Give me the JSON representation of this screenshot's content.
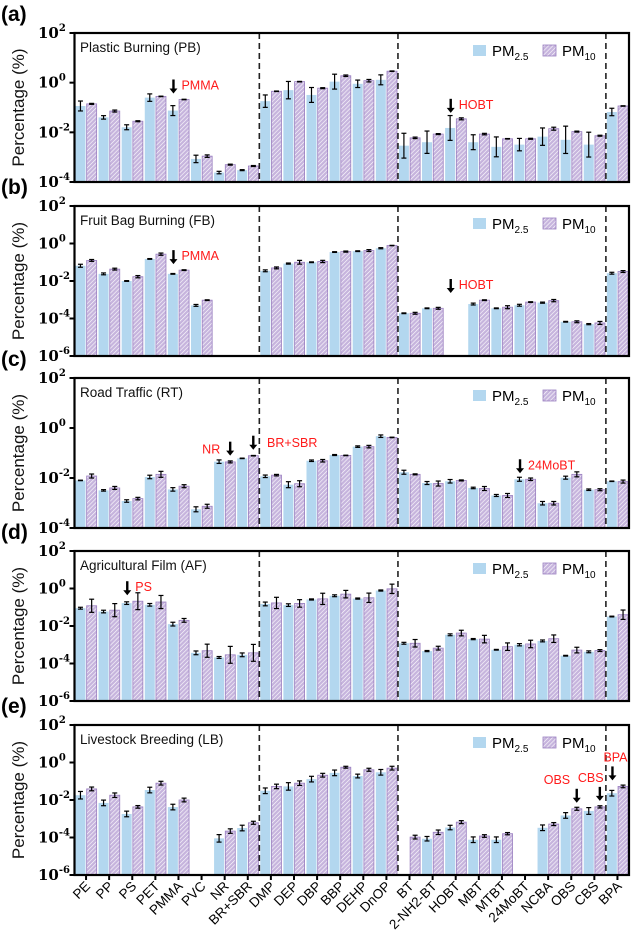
{
  "chart_data": {
    "type": "bar",
    "y_scale": "log",
    "ylabel": "Percentage (%)",
    "ytick_base": "10",
    "legend": [
      {
        "base": "PM",
        "sub": "2.5",
        "color": "#b3d7ef",
        "pattern": "solid"
      },
      {
        "base": "PM",
        "sub": "10",
        "color": "#c6b4dd",
        "pattern": "hatched"
      }
    ],
    "legend_position": "top-right",
    "categories": [
      "PE",
      "PP",
      "PS",
      "PET",
      "PMMA",
      "PVC",
      "NR",
      "BR+SBR",
      "DMP",
      "DEP",
      "DBP",
      "BBP",
      "DEHP",
      "DnOP",
      "BT",
      "2-NH2-BT",
      "HOBT",
      "MBT",
      "MTBT",
      "24MoBT",
      "NCBA",
      "OBS",
      "CBS",
      "BPA"
    ],
    "group_separators_after": [
      "BR+SBR",
      "DnOP",
      "CBS"
    ],
    "panels": [
      {
        "letter": "(a)",
        "title": "Plastic Burning (PB)",
        "ylim_exp": [
          -4,
          2
        ],
        "yticks_exp": [
          2,
          0,
          -2,
          -4
        ],
        "annotations": [
          {
            "text": "PMMA",
            "target": "PMMA"
          },
          {
            "text": "HOBT",
            "target": "HOBT"
          }
        ],
        "series": [
          {
            "name": "PM2.5",
            "values": [
              0.115,
              0.04,
              0.016,
              0.25,
              0.075,
              0.00085,
              0.00024,
              0.0003,
              0.18,
              0.5,
              0.32,
              1.1,
              0.9,
              1.3,
              0.0029,
              0.004,
              0.015,
              0.004,
              0.0026,
              0.0032,
              0.0067,
              0.005,
              0.0032,
              0.066
            ],
            "err_log10": [
              0.2,
              0.07,
              0.1,
              0.15,
              0.2,
              0.15,
              0.05,
              0.02,
              0.25,
              0.35,
              0.3,
              0.3,
              0.15,
              0.2,
              0.5,
              0.45,
              0.5,
              0.3,
              0.4,
              0.25,
              0.35,
              0.55,
              0.5,
              0.15
            ]
          },
          {
            "name": "PM10",
            "values": [
              0.14,
              0.072,
              0.028,
              0.28,
              0.21,
              0.0011,
              0.0005,
              0.00044,
              0.45,
              1.1,
              0.6,
              1.9,
              1.2,
              2.9,
              0.006,
              0.0085,
              0.035,
              0.0085,
              0.0055,
              0.0055,
              0.014,
              0.0107,
              0.0073,
              0.115
            ],
            "err_log10": [
              0.02,
              0.04,
              0.02,
              0.01,
              0.01,
              0.05,
              0.02,
              0.02,
              0.01,
              0.01,
              0.02,
              0.03,
              0.05,
              0.01,
              0.03,
              0.02,
              0.04,
              0.03,
              0.01,
              0.02,
              0.06,
              0.02,
              0.02,
              0.01
            ]
          }
        ]
      },
      {
        "letter": "(b)",
        "title": "Fruit Bag Burning (FB)",
        "ylim_exp": [
          -6,
          2
        ],
        "yticks_exp": [
          2,
          0,
          -2,
          -4,
          -6
        ],
        "annotations": [
          {
            "text": "PMMA",
            "target": "PMMA"
          },
          {
            "text": "HOBT",
            "target": "HOBT"
          }
        ],
        "series": [
          {
            "name": "PM2.5",
            "values": [
              0.065,
              0.024,
              0.01,
              0.15,
              0.024,
              0.0005,
              null,
              null,
              0.035,
              0.085,
              0.1,
              0.35,
              0.39,
              0.56,
              0.00019,
              0.00035,
              null,
              0.00059,
              0.00035,
              0.00051,
              0.0007,
              6.7e-05,
              5e-05,
              0.026
            ],
            "err_log10": [
              0.08,
              0.05,
              0.02,
              0.02,
              0.02,
              0.05,
              0,
              0,
              0.05,
              0.03,
              0.02,
              0.02,
              0.02,
              0.03,
              0.02,
              0.02,
              0,
              0.05,
              0.02,
              0.05,
              0.03,
              0.02,
              0.03,
              0.05
            ]
          },
          {
            "name": "PM10",
            "values": [
              0.125,
              0.043,
              0.017,
              0.27,
              0.038,
              0.00095,
              null,
              null,
              0.05,
              0.1,
              0.11,
              0.37,
              0.42,
              0.78,
              0.00019,
              0.00035,
              null,
              0.00095,
              0.0004,
              0.00075,
              0.0009,
              6.7e-05,
              5.8e-05,
              0.032
            ],
            "err_log10": [
              0.05,
              0.05,
              0.06,
              0.06,
              0.02,
              0.02,
              0,
              0,
              0.05,
              0.1,
              0.06,
              0.03,
              0.05,
              0.01,
              0.05,
              0.05,
              0,
              0.02,
              0.08,
              0.02,
              0.06,
              0.05,
              0.08,
              0.05
            ]
          }
        ]
      },
      {
        "letter": "(c)",
        "title": "Road Traffic (RT)",
        "ylim_exp": [
          -4,
          2
        ],
        "yticks_exp": [
          2,
          0,
          -2,
          -4
        ],
        "annotations": [
          {
            "text": "NR",
            "target": "NR"
          },
          {
            "text": "",
            "target": "BR+SBR"
          },
          {
            "text": "BR+SBR",
            "target": "DMP"
          },
          {
            "text": "24MoBT",
            "target": "24MoBT"
          }
        ],
        "series": [
          {
            "name": "PM2.5",
            "values": [
              0.008,
              0.0032,
              0.0012,
              0.011,
              0.0035,
              0.00056,
              0.045,
              0.061,
              0.0117,
              0.0054,
              0.049,
              0.083,
              0.18,
              0.47,
              0.017,
              0.0063,
              0.0074,
              0.004,
              0.002,
              0.0089,
              0.00098,
              0.0103,
              0.0034,
              0.0074
            ],
            "err_log10": [
              0.01,
              0.03,
              0.05,
              0.07,
              0.07,
              0.1,
              0.07,
              0.01,
              0.05,
              0.12,
              0.03,
              0.02,
              0.03,
              0.05,
              0.08,
              0.06,
              0.07,
              0.03,
              0.04,
              0.08,
              0.07,
              0.06,
              0.03,
              0.01
            ]
          },
          {
            "name": "PM10",
            "values": [
              0.012,
              0.004,
              0.0015,
              0.014,
              0.0047,
              0.00074,
              0.044,
              0.078,
              0.013,
              0.0059,
              0.049,
              0.08,
              0.18,
              0.42,
              0.014,
              0.006,
              0.008,
              0.0038,
              0.002,
              0.0089,
              0.00098,
              0.014,
              0.0034,
              0.0072
            ],
            "err_log10": [
              0.08,
              0.06,
              0.05,
              0.12,
              0.06,
              0.08,
              0.04,
              0.01,
              0.03,
              0.12,
              0.05,
              0.01,
              0.05,
              0.01,
              0.02,
              0.1,
              0.02,
              0.08,
              0.08,
              0.05,
              0.07,
              0.1,
              0.04,
              0.06
            ]
          }
        ]
      },
      {
        "letter": "(d)",
        "title": "Agricultural Film (AF)",
        "ylim_exp": [
          -6,
          2
        ],
        "yticks_exp": [
          2,
          0,
          -2,
          -4,
          -6
        ],
        "annotations": [
          {
            "text": "PS",
            "target": "PS"
          }
        ],
        "series": [
          {
            "name": "PM2.5",
            "values": [
              0.089,
              0.059,
              0.166,
              0.135,
              0.0126,
              0.00037,
              0.00021,
              0.00029,
              0.15,
              0.13,
              0.26,
              0.41,
              0.29,
              0.78,
              0.0012,
              0.00046,
              0.0034,
              0.002,
              0.00054,
              0.001,
              0.0016,
              0.00026,
              0.00042,
              0.032
            ],
            "err_log10": [
              0.05,
              0.07,
              0.07,
              0.07,
              0.1,
              0.1,
              0.05,
              0.1,
              0.1,
              0.07,
              0.03,
              0.05,
              0.03,
              0.03,
              0.05,
              0.03,
              0.05,
              0.03,
              0.02,
              0.06,
              0.05,
              0.02,
              0.05,
              0.02
            ]
          },
          {
            "name": "PM10",
            "values": [
              0.12,
              0.07,
              0.21,
              0.19,
              0.02,
              0.00048,
              0.00029,
              0.00037,
              0.17,
              0.16,
              0.28,
              0.5,
              0.32,
              0.96,
              0.0012,
              0.00066,
              0.0042,
              0.002,
              0.00079,
              0.0011,
              0.0021,
              0.00052,
              0.00049,
              0.04
            ],
            "err_log10": [
              0.35,
              0.35,
              0.45,
              0.35,
              0.1,
              0.35,
              0.45,
              0.45,
              0.3,
              0.2,
              0.3,
              0.2,
              0.25,
              0.25,
              0.2,
              0.1,
              0.15,
              0.2,
              0.2,
              0.2,
              0.2,
              0.15,
              0.05,
              0.25
            ]
          }
        ]
      },
      {
        "letter": "(e)",
        "title": "Livestock Breeding (LB)",
        "ylim_exp": [
          -6,
          2
        ],
        "yticks_exp": [
          2,
          0,
          -2,
          -4,
          -6
        ],
        "annotations": [
          {
            "text": "OBS",
            "target": "OBS"
          },
          {
            "text": "CBS",
            "target": "CBS"
          },
          {
            "text": "BPA",
            "target": "BPA"
          }
        ],
        "series": [
          {
            "name": "PM2.5",
            "values": [
              0.018,
              0.007,
              0.0018,
              0.034,
              0.0042,
              null,
              9e-05,
              0.00032,
              0.031,
              0.053,
              0.13,
              0.28,
              0.19,
              0.3,
              null,
              8.6e-05,
              0.00034,
              7.6e-05,
              7.6e-05,
              null,
              0.00033,
              0.0015,
              0.0026,
              0.023
            ],
            "err_log10": [
              0.2,
              0.15,
              0.15,
              0.15,
              0.15,
              0,
              0.2,
              0.15,
              0.15,
              0.2,
              0.15,
              0.15,
              0.1,
              0.15,
              0,
              0.12,
              0.12,
              0.15,
              0.15,
              0,
              0.15,
              0.15,
              0.18,
              0.15
            ]
          },
          {
            "name": "PM10",
            "values": [
              0.039,
              0.018,
              0.0043,
              0.079,
              0.01,
              null,
              0.00022,
              0.00061,
              0.053,
              0.079,
              0.21,
              0.56,
              0.41,
              0.5,
              0.000105,
              0.00019,
              0.00066,
              0.00012,
              0.00016,
              null,
              0.00052,
              0.0034,
              0.0043,
              0.053
            ],
            "err_log10": [
              0.1,
              0.12,
              0.07,
              0.1,
              0.1,
              0,
              0.12,
              0.08,
              0.12,
              0.12,
              0.1,
              0.05,
              0.08,
              0.1,
              0.1,
              0.12,
              0.08,
              0.07,
              0.06,
              0,
              0.08,
              0.08,
              0.06,
              0.07
            ]
          }
        ]
      }
    ]
  }
}
